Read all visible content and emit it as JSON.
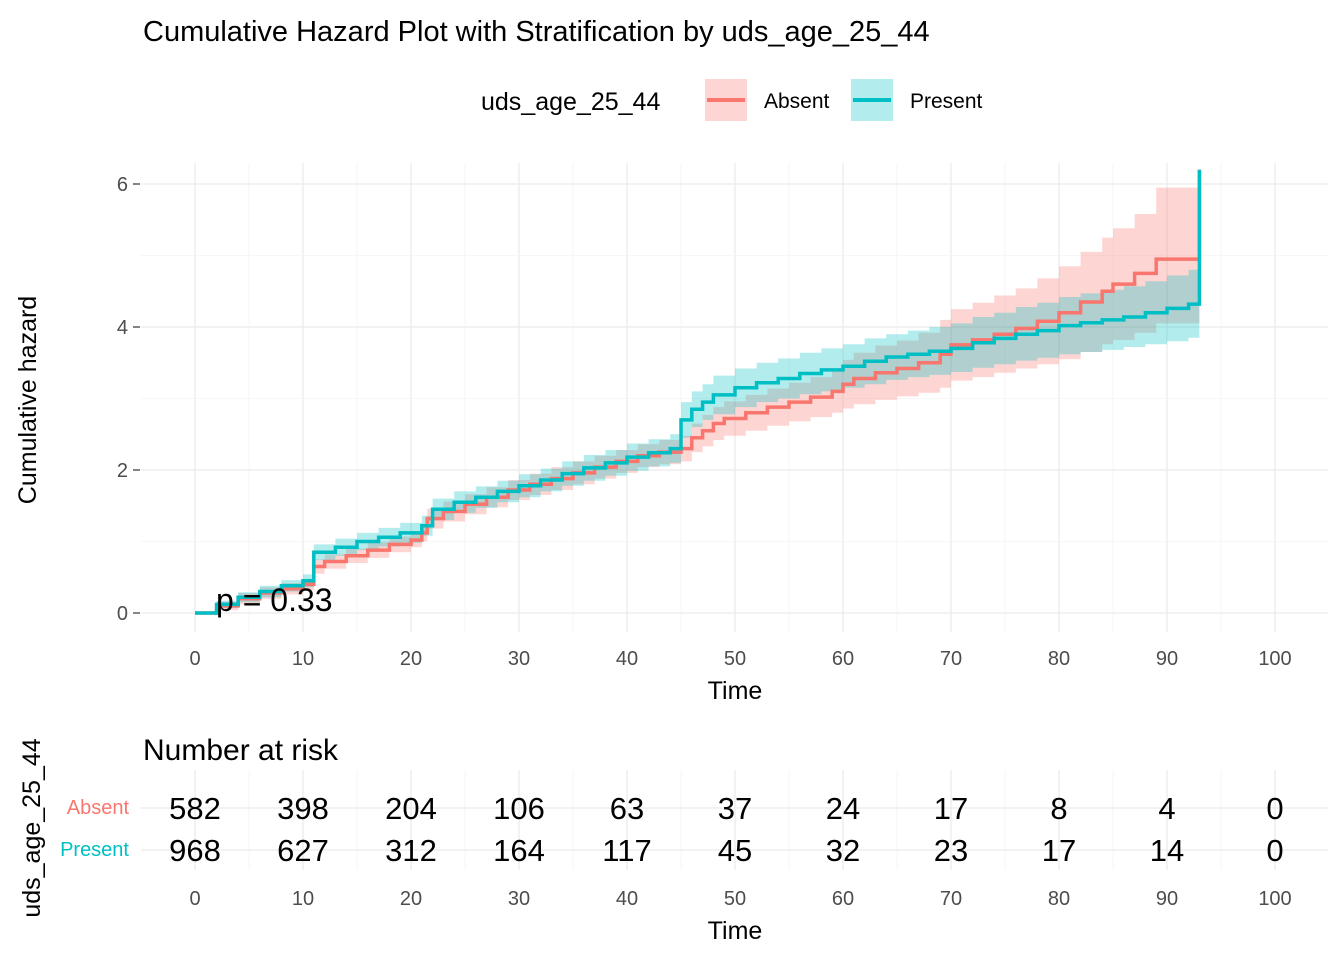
{
  "chart_data": {
    "type": "line",
    "title": "Cumulative Hazard Plot with Stratification by uds_age_25_44",
    "xlabel": "Time",
    "ylabel": "Cumulative hazard",
    "xlim": [
      -5,
      105
    ],
    "ylim": [
      -0.2,
      6.2
    ],
    "x_ticks": [
      0,
      10,
      20,
      30,
      40,
      50,
      60,
      70,
      80,
      90,
      100
    ],
    "y_ticks": [
      0,
      2,
      4,
      6
    ],
    "grid": true,
    "legend": {
      "title": "uds_age_25_44",
      "position": "top",
      "entries": [
        "Absent",
        "Present"
      ]
    },
    "annotation": "p = 0.33",
    "colors": {
      "Absent": "#F8766D",
      "Present": "#00BFC4"
    },
    "series": [
      {
        "name": "Absent",
        "step": true,
        "x": [
          0,
          2,
          4,
          6,
          8,
          10,
          11,
          12,
          14,
          16,
          18,
          20,
          21,
          21.5,
          23,
          25,
          27,
          29,
          31,
          33,
          35,
          37,
          39,
          41,
          43,
          45,
          46,
          47,
          48,
          49,
          51,
          53,
          55,
          57,
          59,
          60,
          61,
          63,
          65,
          67,
          69,
          70,
          72,
          74,
          76,
          78,
          80,
          82,
          84,
          85,
          87,
          89,
          93,
          93
        ],
        "y": [
          0,
          0.1,
          0.2,
          0.28,
          0.34,
          0.4,
          0.65,
          0.72,
          0.8,
          0.88,
          0.96,
          1.02,
          1.12,
          1.32,
          1.42,
          1.52,
          1.62,
          1.72,
          1.8,
          1.88,
          1.96,
          2.04,
          2.12,
          2.2,
          2.25,
          2.3,
          2.45,
          2.55,
          2.65,
          2.72,
          2.8,
          2.88,
          2.95,
          3.02,
          3.1,
          3.2,
          3.28,
          3.36,
          3.42,
          3.5,
          3.62,
          3.75,
          3.82,
          3.9,
          3.98,
          4.08,
          4.2,
          4.35,
          4.5,
          4.6,
          4.75,
          4.95,
          4.95,
          6.2
        ],
        "lower": [
          0,
          0.04,
          0.12,
          0.2,
          0.26,
          0.32,
          0.55,
          0.62,
          0.7,
          0.77,
          0.85,
          0.92,
          1.0,
          1.18,
          1.28,
          1.38,
          1.48,
          1.58,
          1.65,
          1.72,
          1.8,
          1.88,
          1.96,
          2.04,
          2.08,
          2.12,
          2.25,
          2.33,
          2.42,
          2.48,
          2.55,
          2.62,
          2.68,
          2.74,
          2.8,
          2.86,
          2.92,
          2.98,
          3.03,
          3.08,
          3.15,
          3.25,
          3.3,
          3.36,
          3.42,
          3.48,
          3.55,
          3.65,
          3.76,
          3.82,
          3.92,
          4.05,
          4.05,
          4.05
        ],
        "upper": [
          0,
          0.16,
          0.28,
          0.36,
          0.42,
          0.48,
          0.75,
          0.82,
          0.9,
          0.99,
          1.07,
          1.13,
          1.25,
          1.46,
          1.56,
          1.66,
          1.76,
          1.86,
          1.95,
          2.04,
          2.12,
          2.2,
          2.28,
          2.36,
          2.42,
          2.48,
          2.65,
          2.77,
          2.88,
          2.96,
          3.05,
          3.14,
          3.22,
          3.3,
          3.4,
          3.54,
          3.64,
          3.74,
          3.81,
          3.92,
          4.1,
          4.25,
          4.34,
          4.44,
          4.54,
          4.68,
          4.85,
          5.05,
          5.25,
          5.38,
          5.58,
          5.95,
          5.95,
          5.95
        ]
      },
      {
        "name": "Present",
        "step": true,
        "x": [
          0,
          2,
          4,
          6,
          8,
          10,
          11,
          13,
          15,
          17,
          19,
          21,
          22,
          24,
          26,
          28,
          30,
          32,
          34,
          36,
          38,
          40,
          42,
          44,
          45,
          46,
          47,
          48,
          50,
          52,
          54,
          56,
          58,
          60,
          62,
          64,
          66,
          68,
          70,
          72,
          74,
          76,
          78,
          80,
          82,
          84,
          86,
          88,
          90,
          92,
          93,
          93
        ],
        "y": [
          0,
          0.12,
          0.22,
          0.3,
          0.38,
          0.45,
          0.85,
          0.92,
          1.0,
          1.06,
          1.12,
          1.22,
          1.45,
          1.55,
          1.62,
          1.7,
          1.78,
          1.86,
          1.95,
          2.03,
          2.1,
          2.18,
          2.24,
          2.3,
          2.7,
          2.85,
          2.95,
          3.05,
          3.15,
          3.22,
          3.28,
          3.35,
          3.4,
          3.45,
          3.52,
          3.58,
          3.62,
          3.66,
          3.7,
          3.78,
          3.84,
          3.9,
          3.95,
          4.02,
          4.06,
          4.1,
          4.14,
          4.2,
          4.26,
          4.32,
          4.38,
          6.2
        ],
        "lower": [
          0,
          0.07,
          0.15,
          0.22,
          0.3,
          0.36,
          0.74,
          0.8,
          0.88,
          0.93,
          0.98,
          1.08,
          1.3,
          1.4,
          1.47,
          1.55,
          1.62,
          1.7,
          1.78,
          1.85,
          1.92,
          1.99,
          2.05,
          2.1,
          2.45,
          2.6,
          2.7,
          2.78,
          2.88,
          2.95,
          3.0,
          3.06,
          3.1,
          3.15,
          3.2,
          3.26,
          3.3,
          3.33,
          3.37,
          3.43,
          3.48,
          3.53,
          3.57,
          3.62,
          3.65,
          3.68,
          3.72,
          3.76,
          3.8,
          3.85,
          3.88,
          3.88
        ],
        "upper": [
          0,
          0.17,
          0.29,
          0.38,
          0.46,
          0.54,
          0.96,
          1.04,
          1.12,
          1.19,
          1.26,
          1.36,
          1.6,
          1.7,
          1.77,
          1.85,
          1.94,
          2.02,
          2.12,
          2.21,
          2.28,
          2.37,
          2.43,
          2.5,
          2.95,
          3.1,
          3.2,
          3.32,
          3.42,
          3.5,
          3.56,
          3.64,
          3.7,
          3.76,
          3.84,
          3.9,
          3.95,
          4.0,
          4.05,
          4.14,
          4.2,
          4.28,
          4.34,
          4.42,
          4.47,
          4.52,
          4.57,
          4.64,
          4.72,
          4.8,
          4.88,
          4.88
        ]
      }
    ],
    "risk_table": {
      "title": "Number at risk",
      "ylabel": "uds_age_25_44",
      "xlabel": "Time",
      "times": [
        0,
        10,
        20,
        30,
        40,
        50,
        60,
        70,
        80,
        90,
        100
      ],
      "rows": [
        {
          "name": "Absent",
          "values": [
            "582",
            "398",
            "204",
            "106",
            "63",
            "37",
            "24",
            "17",
            "8",
            "4",
            "0"
          ]
        },
        {
          "name": "Present",
          "values": [
            "968",
            "627",
            "312",
            "164",
            "117",
            "45",
            "32",
            "23",
            "17",
            "14",
            "0"
          ]
        }
      ]
    }
  }
}
